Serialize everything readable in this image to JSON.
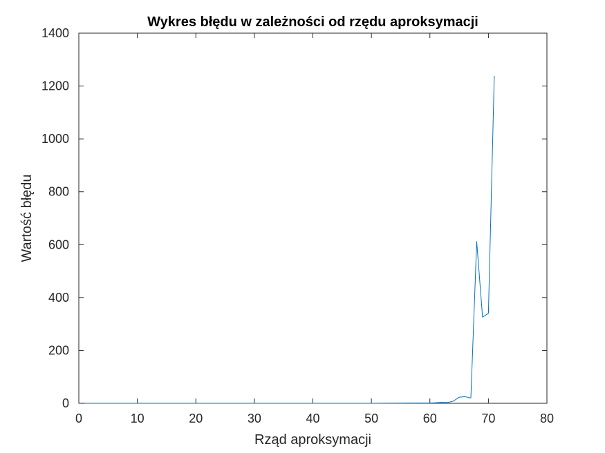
{
  "chart_data": {
    "type": "line",
    "title": "Wykres błędu w zależności od rzędu aproksymacji",
    "xlabel": "Rząd aproksymacji",
    "ylabel": "Wartość błędu",
    "xlim": [
      0,
      80
    ],
    "ylim": [
      0,
      1400
    ],
    "xticks": [
      0,
      10,
      20,
      30,
      40,
      50,
      60,
      70,
      80
    ],
    "yticks": [
      0,
      200,
      400,
      600,
      800,
      1000,
      1200,
      1400
    ],
    "grid": false,
    "legend": "none",
    "line_color": "#0072BD",
    "series": [
      {
        "x": [
          1,
          10,
          20,
          30,
          40,
          50,
          55,
          58,
          60,
          61,
          62,
          63,
          64,
          65,
          66,
          67,
          68,
          69,
          70,
          71
        ],
        "y": [
          0,
          0,
          0,
          0,
          0,
          0,
          0.5,
          1,
          1,
          2,
          4,
          3,
          8,
          23,
          25,
          20,
          612,
          326,
          340,
          1238
        ]
      }
    ]
  }
}
